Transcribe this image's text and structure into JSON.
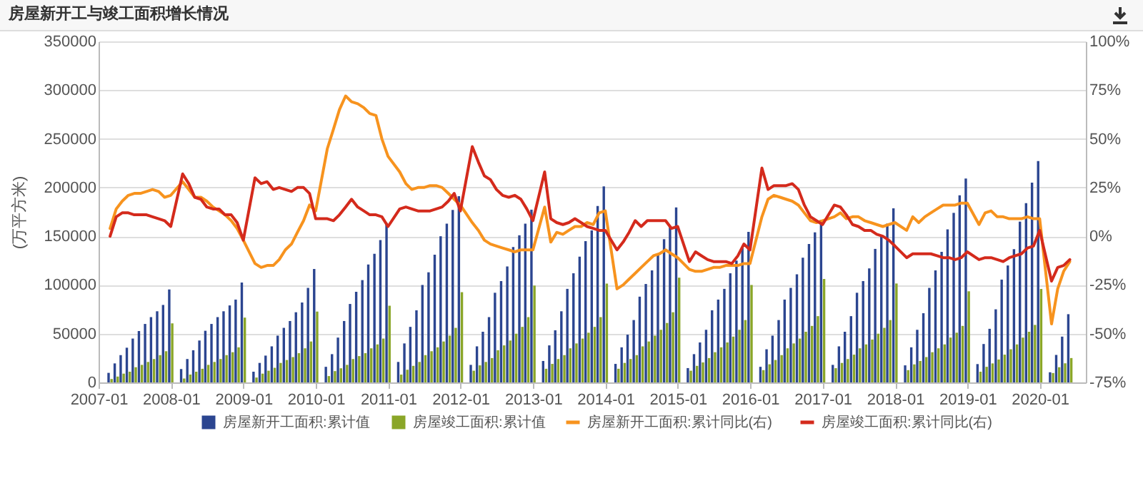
{
  "chart_data": {
    "type": "bar",
    "title": "房屋新开工与竣工面积增长情况",
    "ylabel": "(万平方米)",
    "x": [
      "2007-02-28",
      "2007-03-31",
      "2007-04-30",
      "2007-05-31",
      "2007-06-30",
      "2007-07-31",
      "2007-08-31",
      "2007-09-30",
      "2007-10-31",
      "2007-11-30",
      "2007-12-31",
      "2008-02-29",
      "2008-03-31",
      "2008-04-30",
      "2008-05-31",
      "2008-06-30",
      "2008-07-31",
      "2008-08-31",
      "2008-09-30",
      "2008-10-31",
      "2008-11-30",
      "2008-12-31",
      "2009-02-28",
      "2009-03-31",
      "2009-04-30",
      "2009-05-31",
      "2009-06-30",
      "2009-07-31",
      "2009-08-31",
      "2009-09-30",
      "2009-10-31",
      "2009-11-30",
      "2009-12-31",
      "2010-02-28",
      "2010-03-31",
      "2010-04-30",
      "2010-05-31",
      "2010-06-30",
      "2010-07-31",
      "2010-08-31",
      "2010-09-30",
      "2010-10-31",
      "2010-11-30",
      "2010-12-31",
      "2011-02-28",
      "2011-03-31",
      "2011-04-30",
      "2011-05-31",
      "2011-06-30",
      "2011-07-31",
      "2011-08-31",
      "2011-09-30",
      "2011-10-31",
      "2011-11-30",
      "2011-12-31",
      "2012-02-29",
      "2012-03-31",
      "2012-04-30",
      "2012-05-31",
      "2012-06-30",
      "2012-07-31",
      "2012-08-31",
      "2012-09-30",
      "2012-10-31",
      "2012-11-30",
      "2012-12-31",
      "2013-02-28",
      "2013-03-31",
      "2013-04-30",
      "2013-05-31",
      "2013-06-30",
      "2013-07-31",
      "2013-08-31",
      "2013-09-30",
      "2013-10-31",
      "2013-11-30",
      "2013-12-31",
      "2014-02-28",
      "2014-03-31",
      "2014-04-30",
      "2014-05-31",
      "2014-06-30",
      "2014-07-31",
      "2014-08-31",
      "2014-09-30",
      "2014-10-31",
      "2014-11-30",
      "2014-12-31",
      "2015-02-28",
      "2015-03-31",
      "2015-04-30",
      "2015-05-31",
      "2015-06-30",
      "2015-07-31",
      "2015-08-31",
      "2015-09-30",
      "2015-10-31",
      "2015-11-30",
      "2015-12-31",
      "2016-02-29",
      "2016-03-31",
      "2016-04-30",
      "2016-05-31",
      "2016-06-30",
      "2016-07-31",
      "2016-08-31",
      "2016-09-30",
      "2016-10-31",
      "2016-11-30",
      "2016-12-31",
      "2017-02-28",
      "2017-03-31",
      "2017-04-30",
      "2017-05-31",
      "2017-06-30",
      "2017-07-31",
      "2017-08-31",
      "2017-09-30",
      "2017-10-31",
      "2017-11-30",
      "2017-12-31",
      "2018-02-28",
      "2018-03-31",
      "2018-04-30",
      "2018-05-31",
      "2018-06-30",
      "2018-07-31",
      "2018-08-31",
      "2018-09-30",
      "2018-10-31",
      "2018-11-30",
      "2018-12-31",
      "2019-02-28",
      "2019-03-31",
      "2019-04-30",
      "2019-05-31",
      "2019-06-30",
      "2019-07-31",
      "2019-08-31",
      "2019-09-30",
      "2019-10-31",
      "2019-11-30",
      "2019-12-31",
      "2020-02-29",
      "2020-03-31",
      "2020-04-30",
      "2020-05-31"
    ],
    "xlim": [
      "2007-01-01",
      "2020-08-20"
    ],
    "xticks": [
      "2007-01",
      "2008-01",
      "2009-01",
      "2010-01",
      "2011-01",
      "2012-01",
      "2013-01",
      "2014-01",
      "2015-01",
      "2016-01",
      "2017-01",
      "2018-01",
      "2019-01",
      "2020-01"
    ],
    "ylim": [
      0,
      350000
    ],
    "yticks": [
      0,
      50000,
      100000,
      150000,
      200000,
      250000,
      300000,
      350000
    ],
    "y2lim": [
      -75,
      100
    ],
    "y2ticks": [
      {
        "value": -75,
        "label": "-75%"
      },
      {
        "value": -50,
        "label": "-50%"
      },
      {
        "value": -25,
        "label": "-25%"
      },
      {
        "value": 0,
        "label": "0%"
      },
      {
        "value": 25,
        "label": "25%"
      },
      {
        "value": 50,
        "label": "50%"
      },
      {
        "value": 75,
        "label": "75%"
      },
      {
        "value": 100,
        "label": "100%"
      }
    ],
    "grid": "y",
    "legend": "bottom",
    "series": [
      {
        "name": "房屋新开工面积:累计值",
        "type": "bar",
        "color": "#2b4590",
        "values": [
          9800,
          19500,
          28000,
          35600,
          45000,
          52700,
          60000,
          67000,
          73000,
          79500,
          95400,
          13700,
          24000,
          33000,
          43000,
          53000,
          60000,
          67000,
          73000,
          79000,
          85000,
          102500,
          11000,
          20000,
          27500,
          37000,
          48000,
          56000,
          63000,
          72000,
          82000,
          97000,
          116400,
          16000,
          29000,
          46000,
          63000,
          80500,
          93000,
          105000,
          121000,
          132000,
          146000,
          163600,
          21000,
          40000,
          57000,
          74000,
          100000,
          113000,
          131000,
          150000,
          163000,
          177000,
          191200,
          18000,
          37000,
          52000,
          67000,
          92000,
          104000,
          119000,
          139000,
          151000,
          163000,
          177300,
          22000,
          38000,
          53500,
          73000,
          96000,
          112000,
          129000,
          145000,
          156000,
          181000,
          201200,
          19000,
          36000,
          49000,
          64000,
          88000,
          101000,
          115000,
          131000,
          147000,
          160000,
          179600,
          14700,
          29000,
          41000,
          54000,
          74000,
          85000,
          96000,
          112000,
          125000,
          138000,
          154500,
          16000,
          34000,
          48000,
          64000,
          85000,
          97000,
          111000,
          128000,
          142000,
          154000,
          166900,
          18000,
          37000,
          52000,
          68000,
          92000,
          104000,
          117000,
          137000,
          150000,
          163000,
          178700,
          17500,
          36000,
          54000,
          71000,
          97000,
          115000,
          134000,
          157000,
          174000,
          192000,
          209300,
          18800,
          39400,
          55000,
          75000,
          105500,
          120000,
          136700,
          165000,
          184000,
          205000,
          227200,
          10400,
          28200,
          47000,
          70000
        ]
      },
      {
        "name": "房屋竣工面积:累计值",
        "type": "bar",
        "color": "#8aa628",
        "values": [
          3500,
          6000,
          9000,
          11000,
          15600,
          18000,
          21000,
          24000,
          28000,
          32000,
          60600,
          4000,
          8000,
          11000,
          14000,
          18000,
          21000,
          24000,
          28000,
          31000,
          36000,
          66500,
          5000,
          9000,
          12000,
          15000,
          20000,
          23000,
          26000,
          30000,
          35000,
          42000,
          72700,
          6500,
          11600,
          14500,
          18000,
          24000,
          27000,
          30000,
          35000,
          39000,
          45000,
          78700,
          8000,
          13000,
          17000,
          21000,
          28000,
          32000,
          36000,
          42000,
          48000,
          56000,
          92600,
          12000,
          17500,
          21000,
          25000,
          33000,
          38000,
          43000,
          50000,
          57000,
          67000,
          99400,
          14000,
          19000,
          24000,
          28000,
          35000,
          40000,
          45000,
          51000,
          57000,
          67000,
          101400,
          14000,
          20000,
          24000,
          28000,
          37000,
          42000,
          48000,
          54000,
          61000,
          72000,
          107500,
          12000,
          17000,
          20500,
          25000,
          31000,
          36000,
          41000,
          47000,
          54000,
          64000,
          100000,
          12600,
          18600,
          23000,
          28000,
          35000,
          40000,
          45000,
          52000,
          58000,
          68000,
          106100,
          14600,
          20000,
          24000,
          28500,
          35000,
          39000,
          44000,
          50000,
          56000,
          64000,
          101500,
          12600,
          18500,
          22000,
          26000,
          31000,
          35000,
          39000,
          46000,
          51000,
          58000,
          93500,
          11000,
          16000,
          19500,
          23500,
          28500,
          34000,
          39000,
          46000,
          52000,
          59000,
          95900,
          9600,
          15600,
          19600,
          25000
        ]
      },
      {
        "name": "房屋新开工面积:累计同比(右)",
        "type": "line",
        "axis": "y2",
        "color": "#f7931e",
        "values": [
          4,
          14,
          18,
          21,
          22,
          22,
          23,
          24,
          23,
          20,
          21,
          28,
          24,
          20,
          20,
          18,
          15,
          13,
          11,
          8,
          4,
          -2,
          -14,
          -16,
          -15,
          -15,
          -12,
          -7,
          -4,
          2,
          8,
          16,
          13,
          45,
          55,
          65,
          72,
          69,
          68,
          66,
          63,
          62,
          50,
          41,
          33,
          27,
          24,
          25,
          25,
          26,
          26,
          25,
          22,
          19,
          16,
          7,
          3,
          -2,
          -4,
          -5,
          -6,
          -7,
          -8,
          -7,
          -7,
          -7,
          15,
          -3,
          2,
          1,
          3,
          5,
          5,
          7,
          6,
          12,
          13,
          -27,
          -25,
          -22,
          -19,
          -16,
          -13,
          -10,
          -9,
          -7,
          -9,
          -11,
          -17,
          -18,
          -18,
          -17,
          -16,
          -16,
          -15,
          -15,
          -15,
          -14,
          -14,
          10,
          19,
          21,
          20,
          19,
          18,
          16,
          12,
          8,
          7,
          8,
          10,
          12,
          9,
          10,
          10,
          8,
          7,
          6,
          5,
          6,
          7,
          3,
          10,
          7,
          10,
          12,
          14,
          16,
          16,
          16,
          17,
          17,
          6,
          12,
          13,
          10,
          10,
          9,
          9,
          9,
          10,
          9,
          9,
          -45,
          -27,
          -18,
          -13
        ]
      },
      {
        "name": "房屋竣工面积:累计同比(右)",
        "type": "line",
        "axis": "y2",
        "color": "#d42a1c",
        "values": [
          0,
          10,
          12,
          12,
          11,
          11,
          11,
          10,
          9,
          8,
          5,
          32,
          27,
          20,
          19,
          15,
          14,
          14,
          11,
          11,
          7,
          -2,
          30,
          27,
          28,
          24,
          25,
          24,
          23,
          25,
          25,
          22,
          9,
          9,
          8,
          11,
          15,
          19,
          15,
          13,
          11,
          11,
          10,
          5,
          14,
          15,
          14,
          13,
          13,
          13,
          14,
          15,
          18,
          22,
          13,
          46,
          38,
          31,
          29,
          24,
          21,
          20,
          21,
          19,
          14,
          8,
          33,
          9,
          7,
          6,
          7,
          9,
          7,
          5,
          4,
          3,
          3,
          -7,
          -3,
          2,
          8,
          5,
          8,
          8,
          8,
          8,
          4,
          5,
          -13,
          -8,
          -10,
          -12,
          -13,
          -13,
          -13,
          -14,
          -10,
          -4,
          -7,
          35,
          24,
          26,
          26,
          26,
          27,
          24,
          16,
          10,
          8,
          6,
          16,
          15,
          11,
          6,
          5,
          3,
          3,
          1,
          0,
          -2,
          -5,
          -11,
          -9,
          -9,
          -9,
          -9,
          -10,
          -11,
          -11,
          -12,
          -11,
          -8,
          -12,
          -11,
          -11,
          -12,
          -13,
          -11,
          -10,
          -9,
          -6,
          -5,
          3,
          -23,
          -16,
          -15,
          -12
        ]
      }
    ]
  }
}
